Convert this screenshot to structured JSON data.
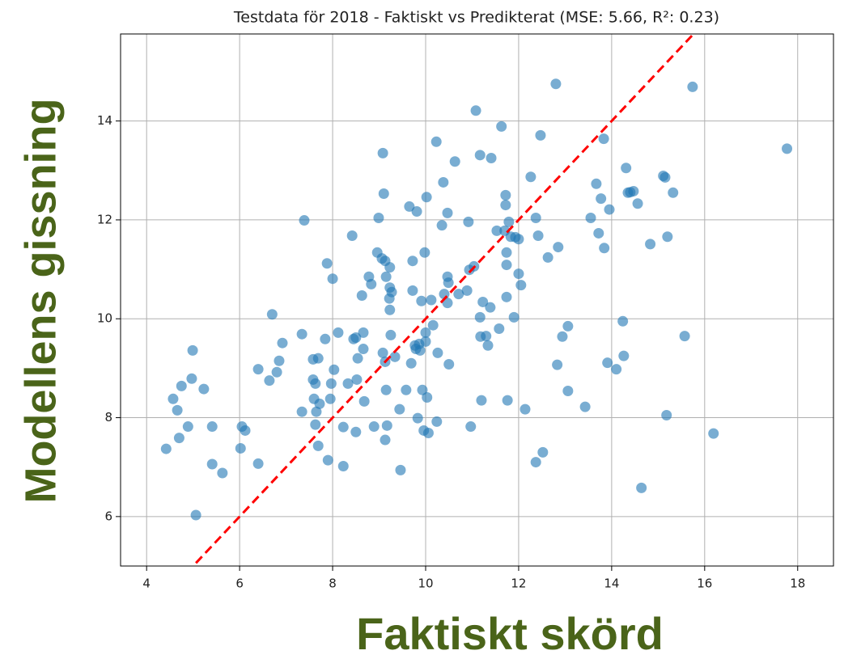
{
  "chart_data": {
    "type": "scatter",
    "title": "Testdata för 2018 - Faktiskt vs Predikterat (MSE: 5.66, R²: 0.23)",
    "x_label": "Faktiskt skörd",
    "y_label": "Modellens gissning",
    "color": "#1f77b4",
    "reference_line": {
      "slope": 1,
      "intercept": 0,
      "color": "#ff0000"
    },
    "grid": true,
    "xlim": [
      3.44,
      18.77
    ],
    "ylim": [
      5.0,
      15.76
    ],
    "xticks": [
      4,
      6,
      8,
      10,
      12,
      14,
      16,
      18
    ],
    "yticks": [
      6,
      8,
      10,
      12,
      14
    ],
    "x": [
      4.42,
      4.57,
      4.66,
      4.7,
      4.75,
      4.89,
      4.97,
      4.99,
      5.06,
      5.23,
      5.41,
      5.41,
      5.63,
      6.02,
      6.05,
      6.12,
      6.4,
      6.4,
      6.64,
      6.7,
      6.8,
      6.85,
      6.92,
      7.34,
      7.34,
      7.39,
      7.58,
      7.58,
      7.6,
      7.63,
      7.63,
      7.65,
      7.69,
      7.69,
      7.72,
      7.84,
      7.88,
      7.9,
      7.95,
      7.97,
      8.0,
      8.03,
      8.12,
      8.23,
      8.23,
      8.33,
      8.42,
      8.45,
      8.5,
      8.5,
      8.52,
      8.54,
      8.63,
      8.66,
      8.66,
      8.68,
      8.78,
      8.83,
      8.89,
      8.99,
      8.96,
      9.06,
      9.08,
      9.08,
      9.1,
      9.13,
      9.15,
      9.13,
      9.15,
      9.13,
      9.17,
      9.23,
      9.22,
      9.23,
      9.27,
      9.23,
      9.25,
      9.34,
      9.44,
      9.46,
      9.58,
      9.65,
      9.69,
      9.72,
      9.72,
      9.77,
      9.81,
      9.79,
      9.83,
      9.86,
      9.88,
      9.91,
      9.93,
      9.96,
      9.98,
      10.0,
      10.02,
      10.0,
      10.03,
      10.06,
      10.12,
      10.16,
      10.23,
      10.24,
      10.26,
      10.35,
      10.38,
      10.4,
      10.47,
      10.47,
      10.49,
      10.47,
      10.5,
      10.63,
      10.71,
      10.89,
      10.92,
      10.94,
      10.97,
      11.04,
      11.08,
      11.17,
      11.17,
      11.2,
      11.18,
      11.23,
      11.3,
      11.34,
      11.41,
      11.39,
      11.53,
      11.58,
      11.63,
      11.72,
      11.72,
      11.7,
      11.74,
      11.74,
      11.74,
      11.76,
      11.79,
      11.83,
      11.9,
      11.93,
      12.0,
      12.0,
      12.05,
      12.14,
      12.26,
      12.37,
      12.37,
      12.42,
      12.47,
      12.52,
      12.63,
      12.8,
      12.85,
      12.83,
      12.94,
      13.06,
      13.06,
      13.43,
      13.55,
      13.67,
      13.72,
      13.77,
      13.83,
      13.84,
      13.91,
      13.95,
      14.1,
      14.24,
      14.26,
      14.31,
      14.35,
      14.4,
      14.47,
      14.56,
      14.64,
      14.83,
      15.11,
      15.15,
      15.2,
      15.18,
      15.32,
      15.57,
      15.74,
      16.19,
      17.77
    ],
    "y": [
      7.37,
      8.38,
      8.15,
      7.59,
      8.64,
      7.82,
      8.79,
      9.36,
      6.03,
      8.58,
      7.82,
      7.06,
      6.88,
      7.38,
      7.82,
      7.74,
      8.98,
      7.07,
      8.75,
      10.09,
      8.92,
      9.15,
      9.51,
      9.69,
      8.12,
      11.99,
      9.18,
      8.77,
      8.38,
      8.69,
      7.86,
      8.12,
      9.2,
      7.43,
      8.28,
      9.59,
      11.12,
      7.14,
      8.38,
      8.69,
      10.81,
      8.97,
      9.72,
      7.81,
      7.02,
      8.69,
      11.68,
      9.59,
      9.62,
      7.71,
      8.77,
      9.2,
      10.47,
      9.39,
      9.72,
      8.33,
      10.85,
      10.7,
      7.82,
      12.04,
      11.34,
      11.22,
      13.35,
      9.31,
      12.53,
      7.55,
      8.56,
      11.17,
      10.85,
      9.13,
      7.84,
      11.04,
      10.41,
      10.63,
      10.54,
      10.18,
      9.67,
      9.23,
      8.17,
      6.94,
      8.56,
      12.27,
      9.1,
      11.17,
      10.57,
      9.46,
      12.17,
      9.39,
      7.99,
      9.49,
      9.36,
      10.36,
      8.56,
      7.74,
      11.34,
      9.54,
      12.46,
      9.72,
      8.41,
      7.69,
      10.38,
      9.87,
      13.58,
      7.92,
      9.31,
      11.89,
      12.76,
      10.5,
      12.14,
      10.85,
      10.73,
      10.32,
      9.08,
      13.18,
      10.5,
      10.57,
      11.96,
      10.99,
      7.82,
      11.06,
      14.21,
      13.31,
      10.03,
      8.35,
      9.64,
      10.34,
      9.65,
      9.46,
      13.25,
      10.23,
      11.78,
      9.8,
      13.89,
      12.5,
      12.3,
      11.78,
      11.34,
      11.09,
      10.44,
      8.35,
      11.96,
      11.66,
      10.03,
      11.65,
      11.61,
      10.91,
      10.68,
      8.17,
      12.87,
      7.1,
      12.04,
      11.68,
      13.71,
      7.3,
      11.24,
      14.75,
      11.45,
      9.07,
      9.64,
      9.85,
      8.54,
      8.22,
      12.04,
      12.73,
      11.73,
      12.43,
      13.64,
      11.43,
      9.11,
      12.21,
      8.98,
      9.95,
      9.25,
      13.05,
      12.55,
      12.56,
      12.58,
      12.33,
      6.58,
      11.51,
      12.89,
      12.86,
      11.66,
      8.05,
      12.55,
      9.65,
      14.69,
      7.68,
      13.44
    ]
  }
}
